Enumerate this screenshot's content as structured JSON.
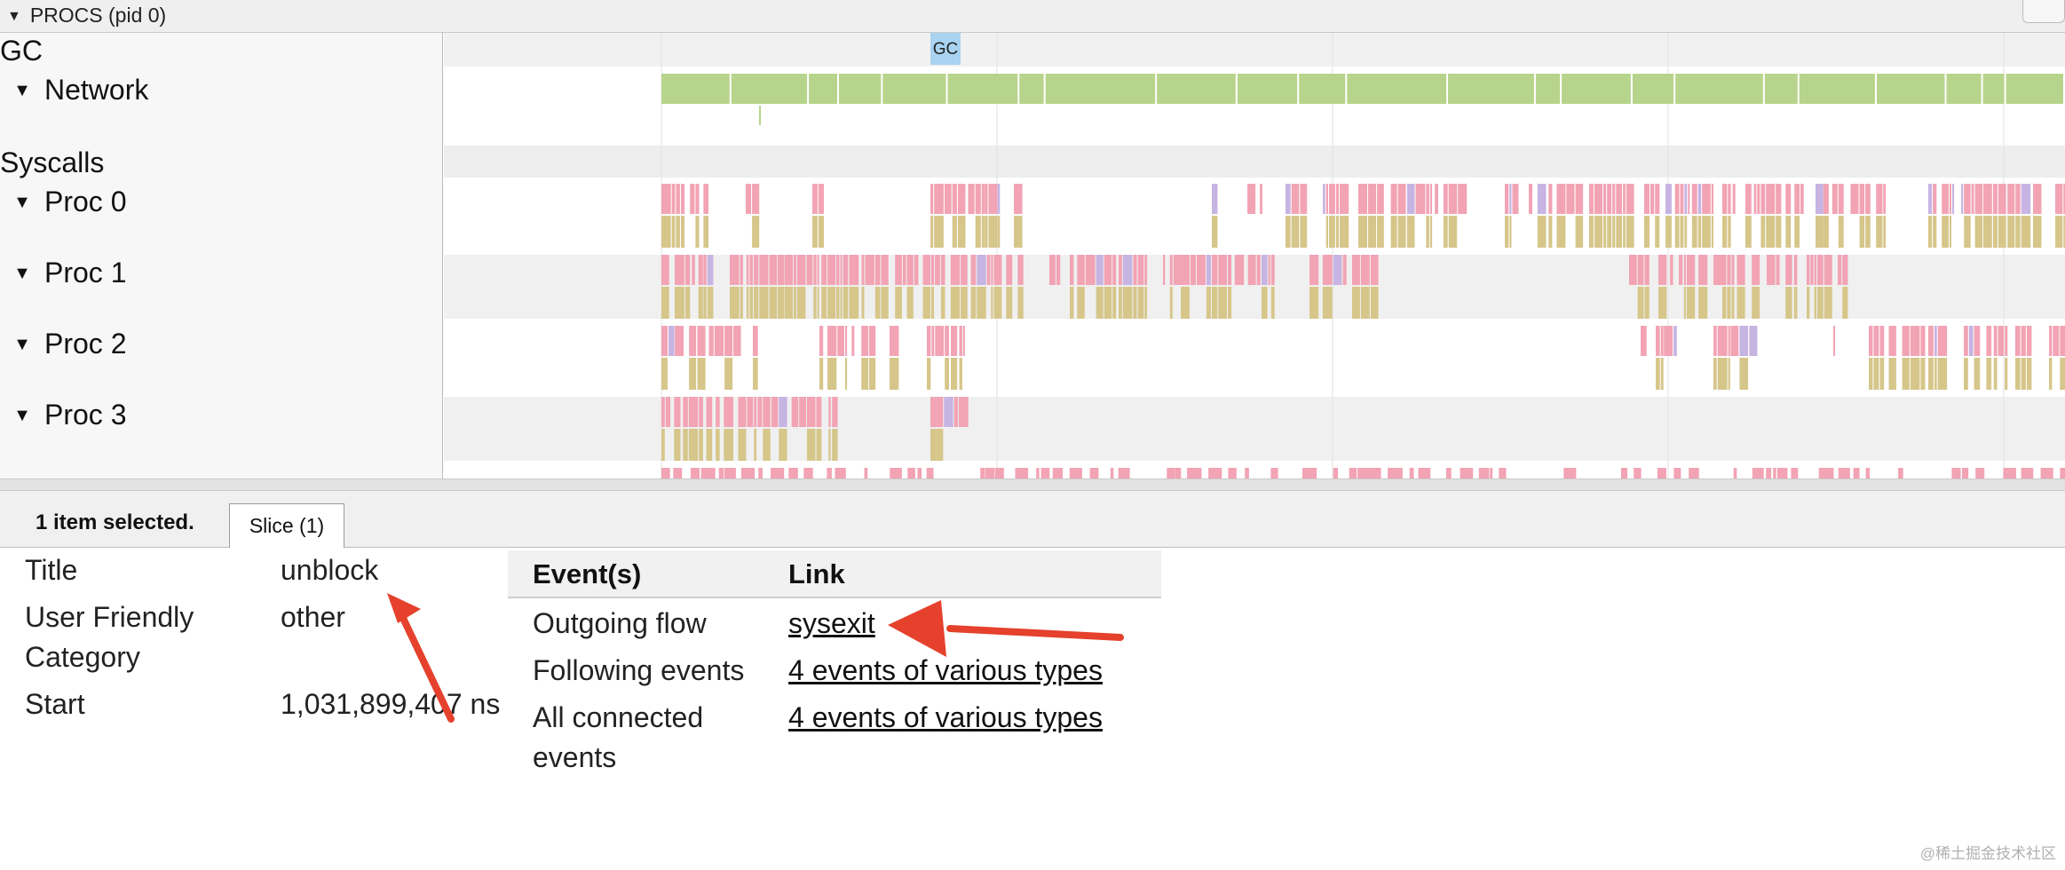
{
  "header": {
    "title": "PROCS (pid 0)"
  },
  "tracks": [
    {
      "label": "GC",
      "expandable": false
    },
    {
      "label": "Network",
      "expandable": true
    },
    {
      "label": "Syscalls",
      "expandable": false
    },
    {
      "label": "Proc 0",
      "expandable": true
    },
    {
      "label": "Proc 1",
      "expandable": true
    },
    {
      "label": "Proc 2",
      "expandable": true
    },
    {
      "label": "Proc 3",
      "expandable": true
    }
  ],
  "timeline": {
    "gc_marker": "GC"
  },
  "colors": {
    "network": "#b7d48c",
    "slice_pink": "#f2a3b4",
    "slice_khaki": "#d6c68a",
    "slice_lavender": "#c6b4e2",
    "gc_marker": "#a9d3f0",
    "arrow": "#e5412c"
  },
  "panel": {
    "selection_status": "1 item selected.",
    "tab_label": "Slice (1)"
  },
  "properties": [
    {
      "key": "Title",
      "value": "unblock"
    },
    {
      "key": "User Friendly Category",
      "value": "other"
    },
    {
      "key": "Start",
      "value": "1,031,899,407 ns"
    }
  ],
  "flows": {
    "header_event": "Event(s)",
    "header_link": "Link",
    "rows": [
      {
        "event": "Outgoing flow",
        "link": "sysexit"
      },
      {
        "event": "Following events",
        "link": "4 events of various types"
      },
      {
        "event": "All connected events",
        "link": "4 events of various types"
      }
    ]
  },
  "watermark": "@稀土掘金技术社区"
}
